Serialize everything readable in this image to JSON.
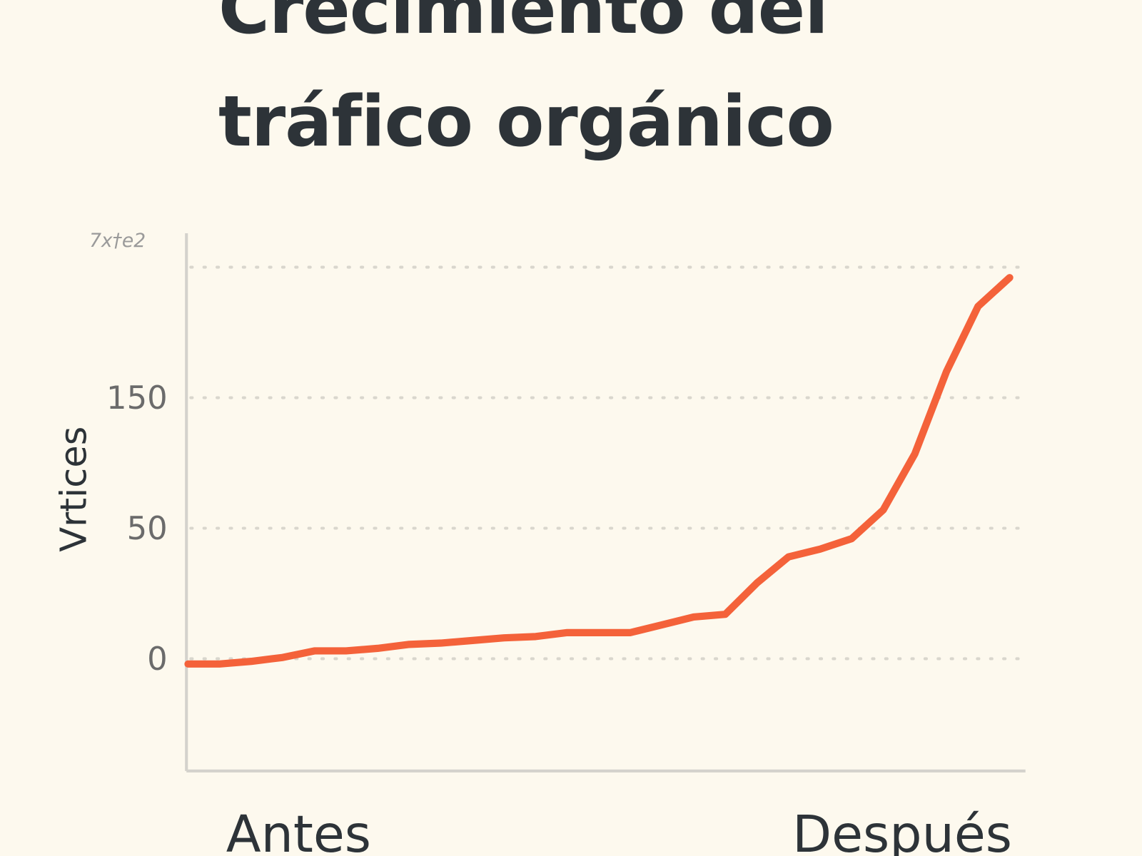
{
  "chart_data": {
    "type": "line",
    "title": "Crecimiento del tráfico orgánico",
    "y_label": "Vrtices",
    "x": [
      0,
      1,
      2,
      3,
      4,
      5,
      6,
      7,
      8,
      9,
      10,
      11,
      12,
      13,
      14,
      15,
      16,
      17,
      18,
      19,
      20,
      21,
      22,
      23,
      24,
      25,
      26
    ],
    "values": [
      -2,
      -2,
      -1,
      0.5,
      3,
      3,
      4,
      5.5,
      6,
      7,
      8,
      8.5,
      10,
      10,
      10,
      13,
      16,
      17,
      29,
      39,
      42,
      46,
      64,
      107,
      170,
      220,
      242
    ],
    "color": "#f4623a",
    "xlim": [
      -0.05,
      26.5
    ],
    "xticks": [
      {
        "value": 3.5,
        "label": "Antes"
      },
      {
        "value": 22.6,
        "label": "Después"
      }
    ],
    "ylim": [
      -43,
      276
    ],
    "yticks": [
      0,
      50,
      150,
      {
        "value": 250,
        "label": "7x†e2"
      }
    ],
    "grid": true
  }
}
